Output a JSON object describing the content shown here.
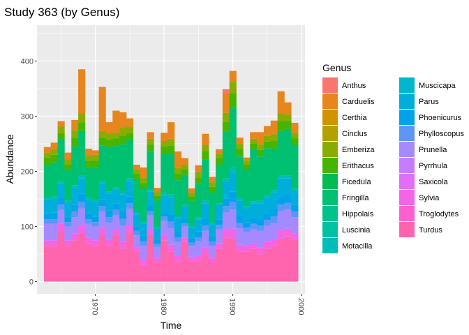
{
  "chart_data": {
    "type": "bar",
    "stacked": true,
    "title": "Study 363 (by Genus)",
    "xlabel": "Time",
    "ylabel": "Abundance",
    "xlim": [
      1961.5,
      2000.5
    ],
    "ylim": [
      -22,
      465
    ],
    "x_ticks": [
      1970,
      1980,
      1990,
      2000
    ],
    "y_ticks": [
      0,
      100,
      200,
      300,
      400
    ],
    "x_tick_rotation": 90,
    "grid": true,
    "legend": {
      "title": "Genus",
      "position": "right",
      "columns": 2
    },
    "x": [
      1963,
      1964,
      1965,
      1966,
      1967,
      1968,
      1969,
      1970,
      1971,
      1972,
      1973,
      1974,
      1975,
      1976,
      1977,
      1978,
      1979,
      1980,
      1981,
      1982,
      1983,
      1984,
      1985,
      1986,
      1987,
      1988,
      1989,
      1990,
      1991,
      1992,
      1993,
      1994,
      1995,
      1996,
      1997,
      1998,
      1999
    ],
    "series": [
      {
        "name": "Anthus",
        "color": "#F8766D",
        "values": [
          0,
          0,
          0,
          0,
          0,
          0,
          0,
          0,
          0,
          0,
          0,
          0,
          0,
          0,
          0,
          0,
          0,
          0,
          0,
          0,
          0,
          0,
          0,
          0,
          0,
          0,
          8,
          0,
          0,
          0,
          0,
          0,
          0,
          0,
          0,
          0,
          0
        ]
      },
      {
        "name": "Carduelis",
        "color": "#E7851E",
        "values": [
          10,
          12,
          10,
          12,
          18,
          80,
          12,
          8,
          80,
          20,
          40,
          28,
          15,
          8,
          18,
          12,
          8,
          15,
          30,
          30,
          12,
          8,
          12,
          20,
          10,
          8,
          35,
          20,
          10,
          5,
          12,
          22,
          18,
          25,
          40,
          22,
          18
        ]
      },
      {
        "name": "Certhia",
        "color": "#D09400",
        "values": [
          0,
          0,
          0,
          0,
          0,
          0,
          0,
          0,
          0,
          0,
          0,
          0,
          0,
          0,
          0,
          0,
          0,
          0,
          0,
          0,
          0,
          0,
          0,
          0,
          0,
          0,
          0,
          0,
          0,
          0,
          0,
          0,
          0,
          0,
          0,
          0,
          0
        ]
      },
      {
        "name": "Cinclus",
        "color": "#B2A100",
        "values": [
          0,
          0,
          0,
          0,
          0,
          0,
          0,
          0,
          0,
          0,
          0,
          0,
          0,
          0,
          0,
          0,
          0,
          0,
          0,
          0,
          0,
          0,
          0,
          0,
          0,
          0,
          0,
          0,
          0,
          0,
          0,
          0,
          0,
          0,
          0,
          0,
          0
        ]
      },
      {
        "name": "Emberiza",
        "color": "#89AC00",
        "values": [
          10,
          10,
          12,
          10,
          14,
          16,
          10,
          10,
          12,
          12,
          10,
          14,
          12,
          8,
          10,
          10,
          6,
          10,
          12,
          10,
          8,
          6,
          10,
          12,
          8,
          8,
          16,
          20,
          10,
          8,
          8,
          10,
          10,
          12,
          14,
          12,
          10
        ]
      },
      {
        "name": "Erithacus",
        "color": "#45B500",
        "values": [
          12,
          14,
          12,
          10,
          16,
          16,
          12,
          12,
          14,
          14,
          14,
          16,
          12,
          10,
          10,
          12,
          8,
          14,
          14,
          12,
          10,
          8,
          12,
          14,
          10,
          12,
          18,
          26,
          14,
          10,
          10,
          12,
          12,
          14,
          18,
          14,
          12
        ]
      },
      {
        "name": "Ficedula",
        "color": "#00BC51",
        "values": [
          0,
          0,
          0,
          0,
          0,
          0,
          0,
          0,
          0,
          0,
          0,
          0,
          0,
          0,
          0,
          0,
          0,
          0,
          0,
          0,
          0,
          0,
          0,
          0,
          0,
          0,
          0,
          0,
          0,
          0,
          0,
          0,
          0,
          0,
          0,
          0,
          0
        ]
      },
      {
        "name": "Fringilla",
        "color": "#00C071",
        "values": [
          60,
          62,
          75,
          55,
          70,
          80,
          55,
          60,
          65,
          80,
          75,
          85,
          70,
          60,
          60,
          70,
          50,
          70,
          75,
          65,
          55,
          45,
          60,
          75,
          55,
          70,
          85,
          110,
          75,
          65,
          95,
          80,
          85,
          75,
          80,
          85,
          80
        ]
      },
      {
        "name": "Hippolais",
        "color": "#00C28B",
        "values": [
          0,
          0,
          0,
          0,
          0,
          0,
          0,
          0,
          0,
          0,
          0,
          0,
          0,
          0,
          0,
          0,
          0,
          0,
          0,
          0,
          0,
          0,
          0,
          0,
          0,
          0,
          0,
          0,
          0,
          0,
          0,
          0,
          0,
          0,
          0,
          0,
          0
        ]
      },
      {
        "name": "Luscinia",
        "color": "#00C1A3",
        "values": [
          0,
          0,
          0,
          0,
          0,
          0,
          0,
          0,
          0,
          0,
          0,
          0,
          0,
          0,
          0,
          0,
          0,
          0,
          0,
          0,
          0,
          0,
          0,
          0,
          0,
          0,
          0,
          0,
          0,
          0,
          0,
          0,
          0,
          0,
          0,
          0,
          0
        ]
      },
      {
        "name": "Motacilla",
        "color": "#00BDB8",
        "values": [
          4,
          4,
          5,
          4,
          6,
          6,
          4,
          5,
          5,
          4,
          4,
          6,
          5,
          4,
          4,
          4,
          3,
          5,
          5,
          4,
          3,
          3,
          4,
          5,
          4,
          4,
          6,
          8,
          5,
          4,
          4,
          5,
          5,
          5,
          6,
          5,
          4
        ]
      },
      {
        "name": "Muscicapa",
        "color": "#00B7CB",
        "values": [
          0,
          0,
          0,
          0,
          0,
          0,
          0,
          0,
          0,
          0,
          0,
          0,
          0,
          0,
          0,
          0,
          0,
          0,
          0,
          0,
          0,
          0,
          0,
          0,
          0,
          0,
          0,
          0,
          0,
          0,
          0,
          0,
          0,
          0,
          0,
          0,
          0
        ]
      },
      {
        "name": "Parus",
        "color": "#00AEDC",
        "values": [
          25,
          25,
          25,
          25,
          30,
          28,
          25,
          25,
          28,
          30,
          25,
          30,
          28,
          22,
          22,
          25,
          18,
          28,
          30,
          25,
          22,
          20,
          22,
          28,
          22,
          25,
          30,
          35,
          28,
          25,
          25,
          28,
          28,
          28,
          32,
          30,
          25
        ]
      },
      {
        "name": "Phoenicurus",
        "color": "#00A3EA",
        "values": [
          10,
          12,
          12,
          10,
          12,
          14,
          10,
          10,
          12,
          12,
          12,
          14,
          12,
          8,
          10,
          10,
          8,
          10,
          14,
          10,
          8,
          8,
          10,
          12,
          8,
          10,
          14,
          18,
          12,
          10,
          12,
          12,
          12,
          14,
          15,
          14,
          12
        ]
      },
      {
        "name": "Phylloscopus",
        "color": "#5E96F6",
        "values": [
          8,
          8,
          10,
          8,
          10,
          12,
          8,
          8,
          10,
          10,
          10,
          12,
          10,
          8,
          8,
          8,
          6,
          8,
          12,
          8,
          6,
          6,
          8,
          10,
          8,
          8,
          12,
          14,
          10,
          8,
          10,
          10,
          10,
          12,
          12,
          12,
          10
        ]
      },
      {
        "name": "Prunella",
        "color": "#A58AFF",
        "values": [
          30,
          30,
          25,
          25,
          30,
          30,
          25,
          25,
          30,
          30,
          25,
          30,
          30,
          22,
          25,
          25,
          20,
          25,
          30,
          25,
          20,
          20,
          25,
          30,
          22,
          25,
          30,
          35,
          30,
          25,
          25,
          30,
          30,
          30,
          35,
          35,
          30
        ]
      },
      {
        "name": "Pyrrhula",
        "color": "#C77CFF",
        "values": [
          0,
          0,
          0,
          0,
          0,
          0,
          0,
          0,
          0,
          0,
          0,
          0,
          0,
          0,
          0,
          0,
          0,
          0,
          0,
          0,
          0,
          0,
          0,
          0,
          0,
          0,
          0,
          0,
          0,
          0,
          0,
          0,
          0,
          0,
          0,
          0,
          0
        ]
      },
      {
        "name": "Saxicola",
        "color": "#E26EF7",
        "values": [
          0,
          0,
          0,
          0,
          0,
          0,
          0,
          0,
          0,
          0,
          0,
          0,
          0,
          0,
          0,
          0,
          0,
          0,
          0,
          0,
          0,
          0,
          0,
          0,
          0,
          0,
          0,
          0,
          0,
          0,
          0,
          0,
          0,
          0,
          0,
          0,
          0
        ]
      },
      {
        "name": "Sylvia",
        "color": "#F365E6",
        "values": [
          10,
          10,
          15,
          10,
          12,
          15,
          10,
          10,
          12,
          12,
          10,
          12,
          12,
          8,
          10,
          10,
          8,
          10,
          12,
          10,
          8,
          8,
          10,
          12,
          8,
          10,
          15,
          18,
          12,
          10,
          10,
          12,
          12,
          12,
          15,
          14,
          10
        ]
      },
      {
        "name": "Troglodytes",
        "color": "#FE61CF",
        "values": [
          0,
          0,
          0,
          0,
          0,
          0,
          0,
          0,
          0,
          0,
          0,
          0,
          0,
          0,
          0,
          0,
          0,
          0,
          0,
          0,
          0,
          0,
          0,
          0,
          0,
          0,
          0,
          0,
          0,
          0,
          0,
          0,
          0,
          0,
          0,
          0,
          0
        ]
      },
      {
        "name": "Turdus",
        "color": "#FF65AE",
        "values": [
          65,
          65,
          90,
          65,
          75,
          88,
          70,
          65,
          85,
          65,
          85,
          60,
          90,
          54,
          30,
          85,
          35,
          75,
          55,
          37,
          72,
          37,
          38,
          50,
          35,
          60,
          80,
          78,
          55,
          55,
          60,
          50,
          60,
          65,
          78,
          82,
          77
        ]
      }
    ]
  }
}
